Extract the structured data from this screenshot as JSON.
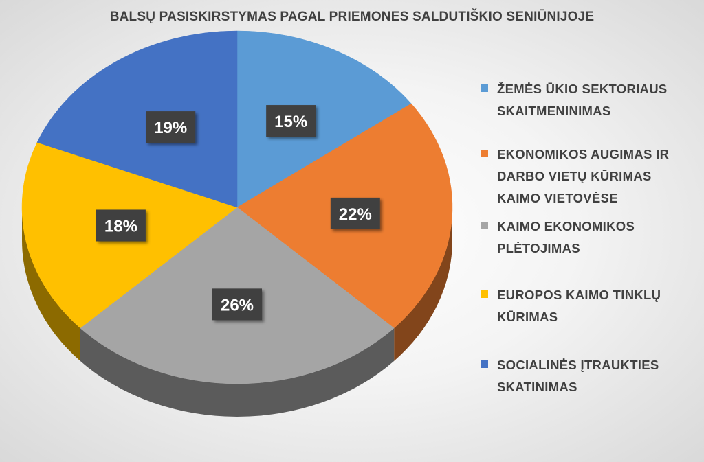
{
  "chart_data": {
    "type": "pie",
    "title": "BALSŲ PASISKIRSTYMAS PAGAL PRIEMONES SALDUTIŠKIO SENIŪNIJOJE",
    "legend_position": "right",
    "slices": [
      {
        "name": "ŽEMĖS ŪKIO SEKTORIAUS SKAITMENINIMAS",
        "value": 15,
        "label": "15%",
        "color": "#5B9BD5"
      },
      {
        "name": "EKONOMIKOS AUGIMAS IR DARBO VIETŲ KŪRIMAS KAIMO VIETOVĖSE",
        "value": 22,
        "label": "22%",
        "color": "#ED7D31"
      },
      {
        "name": "KAIMO EKONOMIKOS PLĖTOJIMAS",
        "value": 26,
        "label": "26%",
        "color": "#A5A5A5"
      },
      {
        "name": "EUROPOS KAIMO TINKLŲ KŪRIMAS",
        "value": 18,
        "label": "18%",
        "color": "#FFC000"
      },
      {
        "name": "SOCIALINĖS ĮTRAUKTIES SKATINIMAS",
        "value": 19,
        "label": "19%",
        "color": "#4472C4"
      }
    ]
  }
}
